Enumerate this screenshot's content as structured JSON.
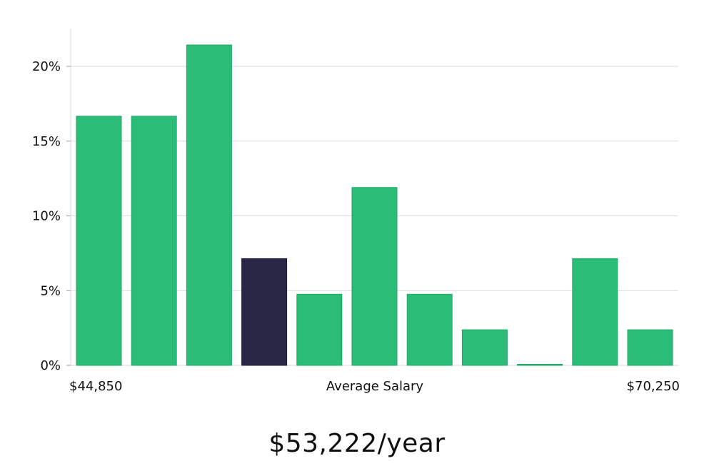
{
  "chart_data": {
    "type": "bar",
    "title": "",
    "xlabel": "Average Salary",
    "ylabel": "",
    "x_min_label": "$44,850",
    "x_max_label": "$70,250",
    "ylim": [
      0,
      22.5
    ],
    "yticks": [
      0,
      5,
      10,
      15,
      20
    ],
    "ytick_labels": [
      "0%",
      "5%",
      "10%",
      "15%",
      "20%"
    ],
    "grid": true,
    "values": [
      16.67,
      16.67,
      21.43,
      7.14,
      4.76,
      11.9,
      4.76,
      2.38,
      0,
      7.14,
      2.38
    ],
    "highlight_index": 3,
    "bar_color": "#2bbd77",
    "highlight_color": "#292646",
    "grid_color": "#d9d9d9"
  },
  "headline": "$53,222/year"
}
